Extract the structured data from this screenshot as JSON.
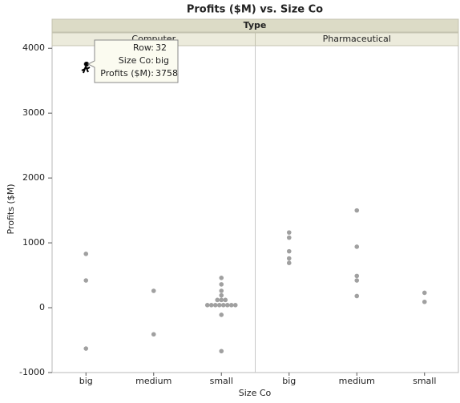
{
  "chart_data": {
    "type": "scatter",
    "title": "Profits ($M) vs. Size Co",
    "facet_label": "Type",
    "x_label": "Size Co",
    "y_label": "Profits ($M)",
    "ylim": [
      -1000,
      4040
    ],
    "yticks": [
      -1000,
      0,
      1000,
      2000,
      3000,
      4000
    ],
    "color": "#a0a0a0",
    "panels": [
      {
        "name": "Computer",
        "groups": [
          {
            "category": "big",
            "values": [
              3758,
              830,
              420,
              -630
            ]
          },
          {
            "category": "medium",
            "values": [
              260,
              -410
            ]
          },
          {
            "category": "small",
            "values": [
              460,
              360,
              260,
              190,
              120,
              120,
              120,
              40,
              40,
              40,
              40,
              40,
              40,
              40,
              40,
              -110,
              -670
            ]
          }
        ]
      },
      {
        "name": "Pharmaceutical",
        "groups": [
          {
            "category": "big",
            "values": [
              1160,
              1080,
              870,
              760,
              690
            ]
          },
          {
            "category": "medium",
            "values": [
              1500,
              940,
              490,
              420,
              180
            ]
          },
          {
            "category": "small",
            "values": [
              230,
              90
            ]
          }
        ]
      }
    ],
    "tooltip": {
      "rows": [
        [
          "Row:",
          "32"
        ],
        [
          "Size Co:",
          "big"
        ],
        [
          "Profits ($M):",
          "3758"
        ]
      ]
    }
  }
}
